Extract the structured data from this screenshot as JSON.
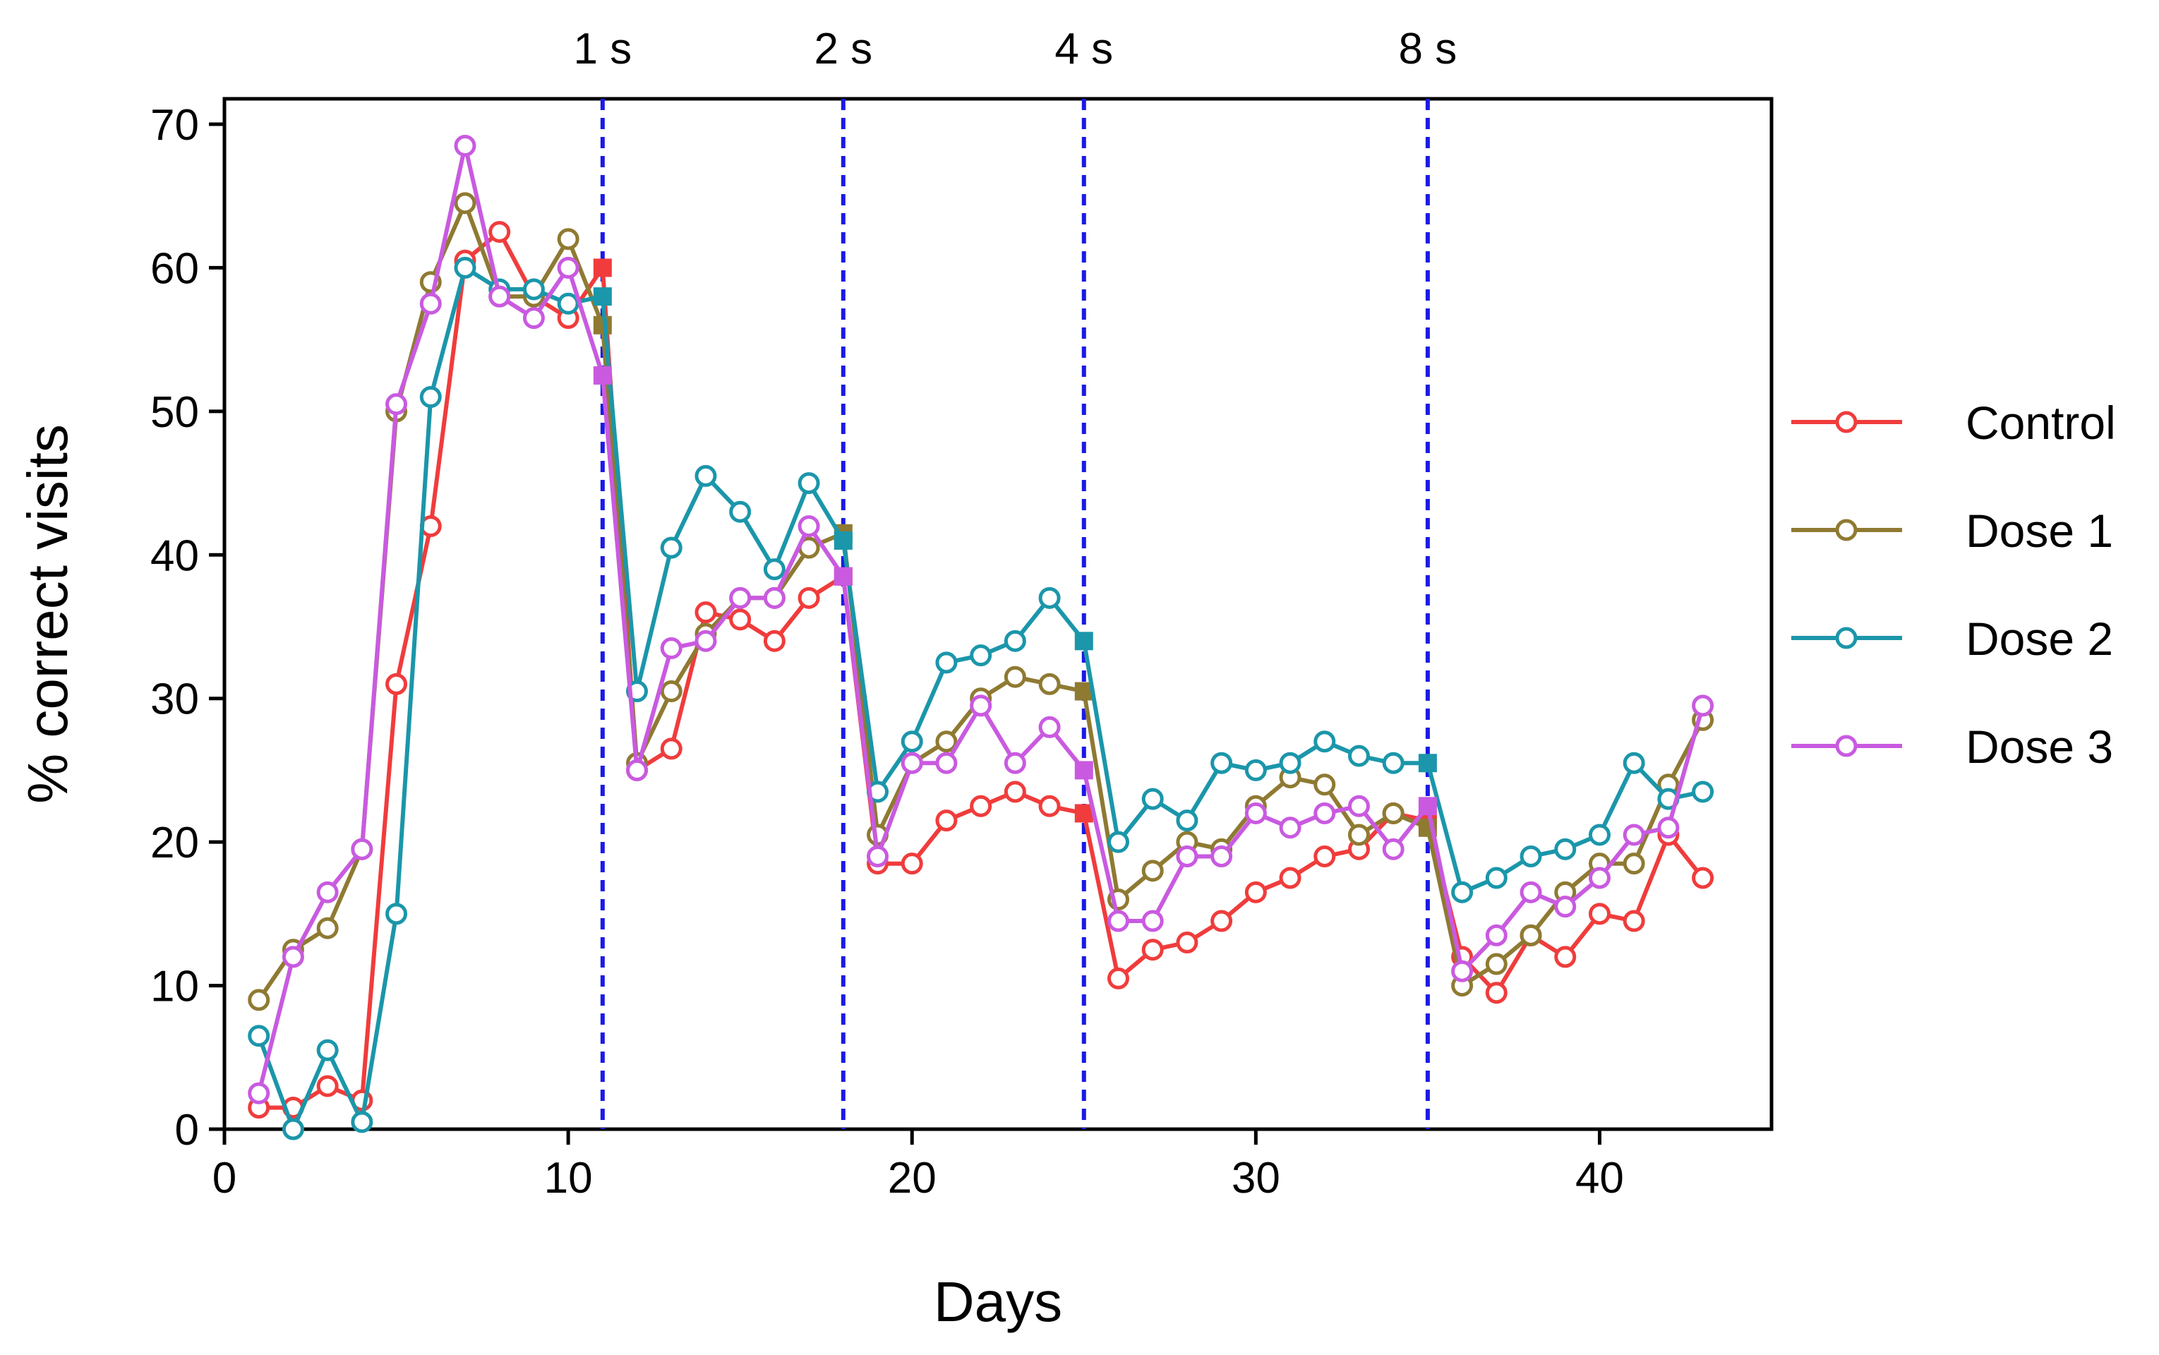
{
  "chart_data": {
    "type": "line",
    "title": "",
    "xlabel": "Days",
    "ylabel": "% correct visits",
    "xlim": [
      0,
      45
    ],
    "ylim": [
      0,
      70
    ],
    "xticks": [
      0,
      10,
      20,
      30,
      40
    ],
    "yticks": [
      0,
      10,
      20,
      30,
      40,
      50,
      60,
      70
    ],
    "grid": false,
    "legend_position": "right",
    "vlines": [
      {
        "x": 11,
        "label": "1 s"
      },
      {
        "x": 18,
        "label": "2 s"
      },
      {
        "x": 25,
        "label": "4 s"
      },
      {
        "x": 35,
        "label": "8 s"
      }
    ],
    "transition_days": [
      11,
      18,
      25,
      35
    ],
    "x": [
      1,
      2,
      3,
      4,
      5,
      6,
      7,
      8,
      9,
      10,
      11,
      12,
      13,
      14,
      15,
      16,
      17,
      18,
      19,
      20,
      21,
      22,
      23,
      24,
      25,
      26,
      27,
      28,
      29,
      30,
      31,
      32,
      33,
      34,
      35,
      36,
      37,
      38,
      39,
      40,
      41,
      42,
      43
    ],
    "series": [
      {
        "name": "Control",
        "color": "#f03c3c",
        "values": [
          1.5,
          1.5,
          3,
          2,
          31,
          42,
          60.5,
          62.5,
          58,
          56.5,
          60,
          25,
          26.5,
          36,
          35.5,
          34,
          37,
          38.5,
          18.5,
          18.5,
          21.5,
          22.5,
          23.5,
          22.5,
          22,
          10.5,
          12.5,
          13,
          14.5,
          16.5,
          17.5,
          19,
          19.5,
          22,
          21.5,
          12,
          9.5,
          13.5,
          12,
          15,
          14.5,
          20.5,
          17.5
        ]
      },
      {
        "name": "Dose 1",
        "color": "#8f7a32",
        "values": [
          9,
          12.5,
          14,
          19.5,
          50,
          59,
          64.5,
          58,
          58,
          62,
          56,
          25.5,
          30.5,
          34.5,
          37,
          37,
          40.5,
          41.5,
          20.5,
          25.5,
          27,
          30,
          31.5,
          31,
          30.5,
          16,
          18,
          20,
          19.5,
          22.5,
          24.5,
          24,
          20.5,
          22,
          21,
          10,
          11.5,
          13.5,
          16.5,
          18.5,
          18.5,
          24,
          28.5
        ]
      },
      {
        "name": "Dose 2",
        "color": "#1b96aa",
        "values": [
          6.5,
          0,
          5.5,
          0.5,
          15,
          51,
          60,
          58.5,
          58.5,
          57.5,
          58,
          30.5,
          40.5,
          45.5,
          43,
          39,
          45,
          41,
          23.5,
          27,
          32.5,
          33,
          34,
          37,
          34,
          20,
          23,
          21.5,
          25.5,
          25,
          25.5,
          27,
          26,
          25.5,
          25.5,
          16.5,
          17.5,
          19,
          19.5,
          20.5,
          25.5,
          23,
          23.5
        ]
      },
      {
        "name": "Dose 3",
        "color": "#c95ae0",
        "values": [
          2.5,
          12,
          16.5,
          19.5,
          50.5,
          57.5,
          68.5,
          58,
          56.5,
          60,
          52.5,
          25,
          33.5,
          34,
          37,
          37,
          42,
          38.5,
          19,
          25.5,
          25.5,
          29.5,
          25.5,
          28,
          25,
          14.5,
          14.5,
          19,
          19,
          22,
          21,
          22,
          22.5,
          19.5,
          22.5,
          11,
          13.5,
          16.5,
          15.5,
          17.5,
          20.5,
          21,
          29.5
        ]
      }
    ]
  }
}
